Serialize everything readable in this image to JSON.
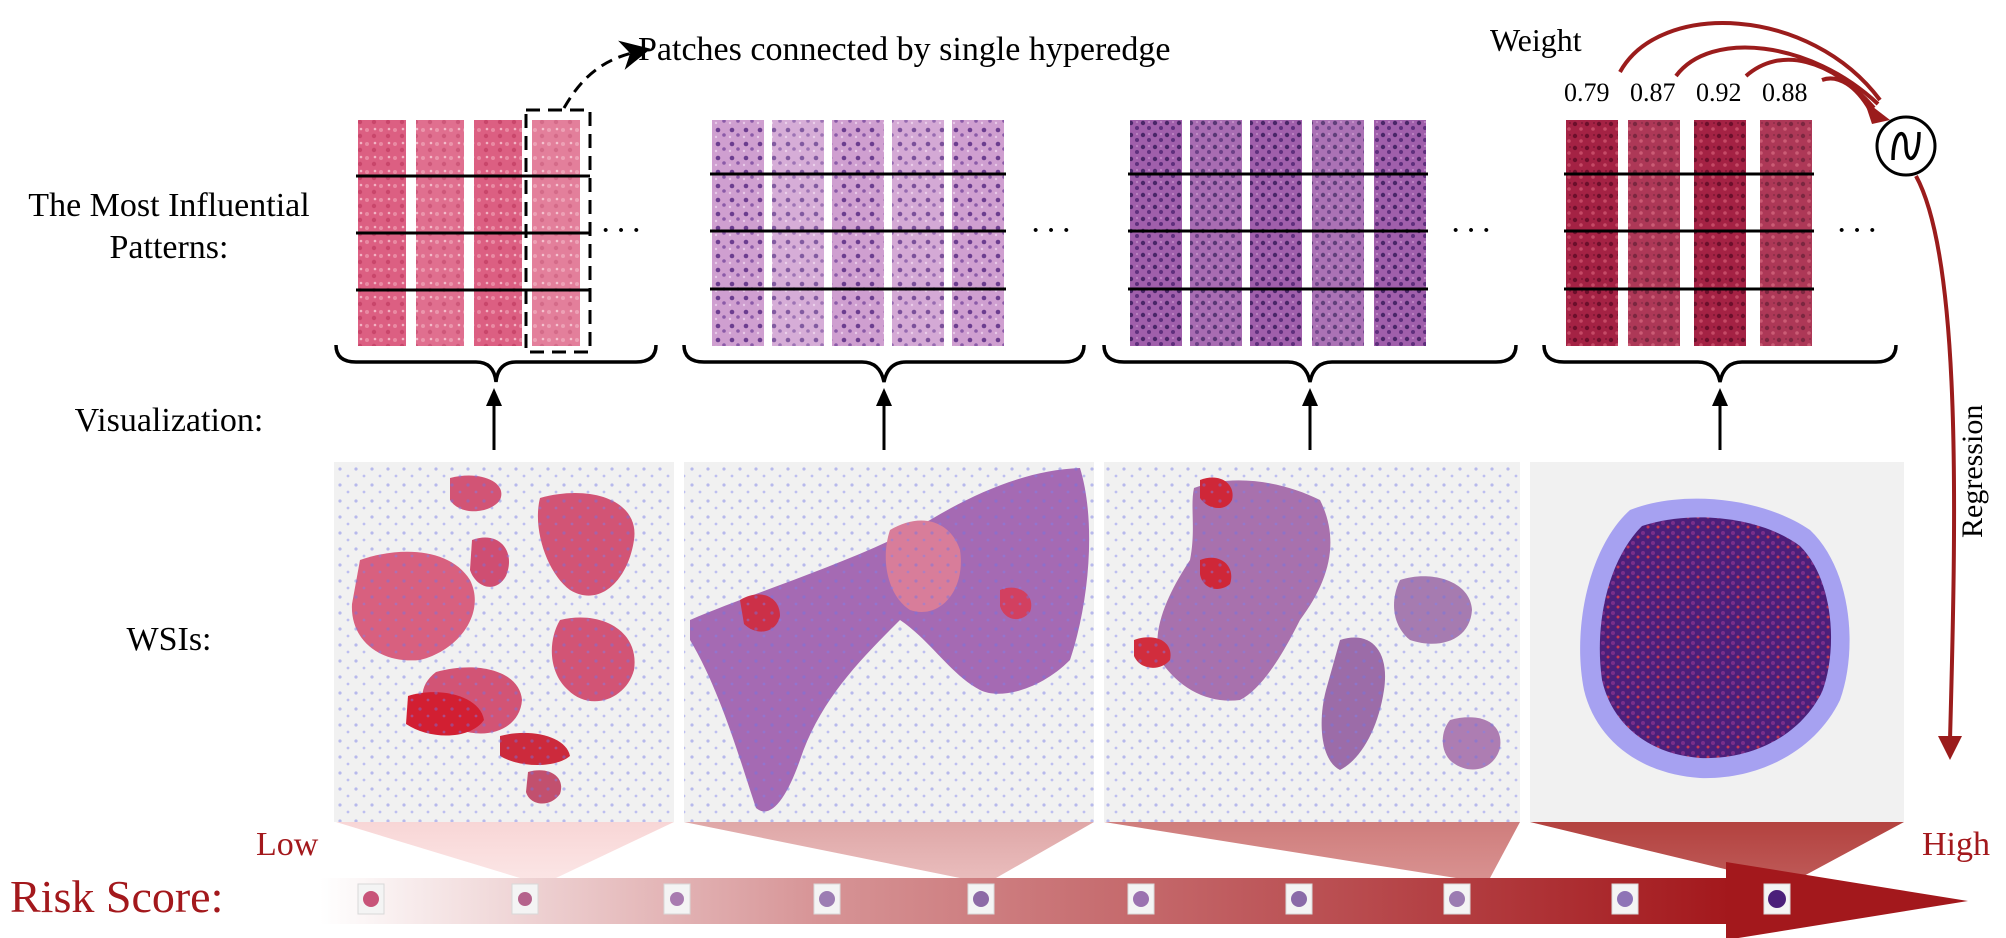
{
  "labels": {
    "patches_note": "Patches connected by single hyperedge",
    "influential_line1": "The Most Influential",
    "influential_line2": "Patterns:",
    "visualization": "Visualization:",
    "wsis": "WSIs:",
    "weight": "Weight",
    "regression": "Regression",
    "low": "Low",
    "high": "High",
    "risk_score": "Risk Score:",
    "ellipsis": "···"
  },
  "weights": [
    "0.79",
    "0.87",
    "0.92",
    "0.88"
  ],
  "colors": {
    "accent_red": "#a3181c",
    "arrow_red": "#9b1c1c",
    "patch_pink": "#d9557a",
    "patch_lilac": "#c690c6",
    "patch_purple": "#93509e",
    "patch_crimson": "#9c1d3a",
    "wsi_blue_overlay": "#7e7ef0",
    "slide_bg": "#ececec"
  },
  "groups": [
    {
      "name": "group-1",
      "tone": "pink",
      "columns": 4
    },
    {
      "name": "group-2",
      "tone": "lilac",
      "columns": 5
    },
    {
      "name": "group-3",
      "tone": "purple",
      "columns": 5
    },
    {
      "name": "group-4",
      "tone": "crimson",
      "columns": 4
    }
  ],
  "icons": [
    "summation-node-icon",
    "up-arrow-icon",
    "dashed-arrow-icon",
    "curved-arrow-icon"
  ]
}
